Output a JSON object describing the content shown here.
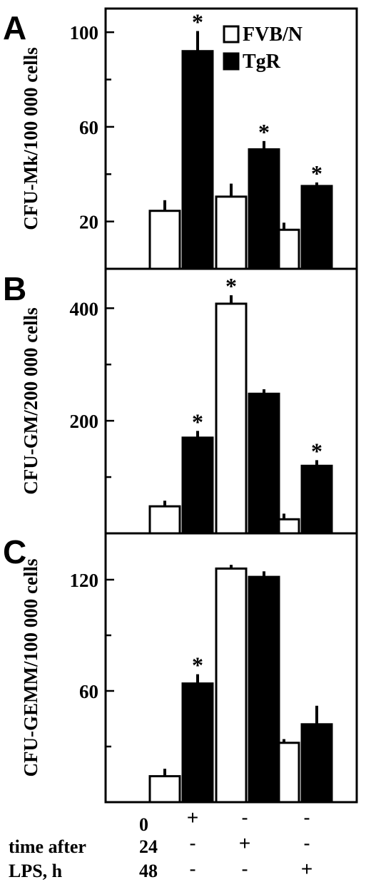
{
  "chart_data": [
    {
      "type": "bar",
      "panel": "A",
      "ylabel": "CFU-Mk/100 000 cells",
      "ylim": [
        0,
        110
      ],
      "yticks": [
        20,
        60,
        100
      ],
      "minor_yticks": [
        40,
        80
      ],
      "series": [
        {
          "name": "FVB/N",
          "values": [
            24.5,
            30.5,
            16.5
          ],
          "errors": [
            4.5,
            5.5,
            3.0
          ],
          "significant": [
            false,
            false,
            false
          ]
        },
        {
          "name": "TgR",
          "values": [
            92,
            50.5,
            35
          ],
          "errors": [
            8.5,
            3.5,
            1.5
          ],
          "significant": [
            true,
            true,
            true
          ]
        }
      ],
      "legend": {
        "placement": "top-right",
        "entries": [
          "FVB/N",
          "TgR"
        ]
      }
    },
    {
      "type": "bar",
      "panel": "B",
      "ylabel": "CFU-GM/200 000 cells",
      "ylim": [
        0,
        470
      ],
      "yticks": [
        200,
        400
      ],
      "minor_yticks": [
        100,
        300
      ],
      "series": [
        {
          "name": "FVB/N",
          "values": [
            48,
            408,
            25
          ],
          "errors": [
            10,
            15,
            10
          ],
          "significant": [
            false,
            true,
            false
          ]
        },
        {
          "name": "TgR",
          "values": [
            170,
            248,
            120
          ],
          "errors": [
            12,
            8,
            10
          ],
          "significant": [
            true,
            false,
            true
          ]
        }
      ]
    },
    {
      "type": "bar",
      "panel": "C",
      "ylabel": "CFU-GEMM/100 000 cells",
      "ylim": [
        0,
        145
      ],
      "yticks": [
        60,
        120
      ],
      "minor_yticks": [
        30,
        90
      ],
      "series": [
        {
          "name": "FVB/N",
          "values": [
            14,
            126,
            32
          ],
          "errors": [
            4,
            2,
            2
          ],
          "significant": [
            false,
            false,
            false
          ]
        },
        {
          "name": "TgR",
          "values": [
            64,
            121.5,
            42
          ],
          "errors": [
            5,
            3,
            10
          ],
          "significant": [
            true,
            false,
            false
          ]
        }
      ]
    }
  ],
  "xaxis": {
    "row_labels": [
      "",
      "time after",
      "LPS, h"
    ],
    "row_values": [
      "0",
      "24",
      "48"
    ],
    "matrix": [
      [
        "+",
        "-",
        "-"
      ],
      [
        "-",
        "+",
        "-"
      ],
      [
        "-",
        "-",
        "+"
      ]
    ]
  }
}
